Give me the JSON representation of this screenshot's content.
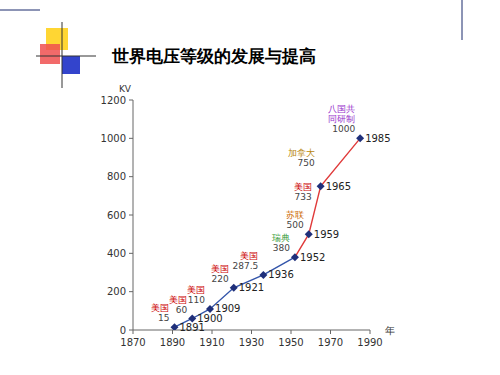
{
  "chart_data": {
    "type": "line",
    "title": "世界电压等级的发展与提高",
    "y_label": "KV",
    "x_label": "年",
    "x": [
      1891,
      1900,
      1909,
      1921,
      1936,
      1952,
      1959,
      1965,
      1985
    ],
    "xlim": [
      1870,
      1990
    ],
    "xticks": [
      1870,
      1890,
      1910,
      1930,
      1950,
      1970,
      1990
    ],
    "ylim": [
      0,
      1200
    ],
    "yticks": [
      0,
      200,
      400,
      600,
      800,
      1000,
      1200
    ],
    "grid": false,
    "series": [
      {
        "type": "line",
        "color": "#3355aa",
        "line_style": "solid",
        "values": [
          15,
          60,
          110,
          220,
          287.5,
          380,
          null,
          null,
          null
        ]
      },
      {
        "type": "line",
        "color": "#e03a3a",
        "line_style": "solid",
        "values": [
          null,
          null,
          null,
          null,
          null,
          380,
          500,
          750,
          1000
        ]
      },
      {
        "type": "scatter",
        "color": "#1f2f7a",
        "marker": "diamond",
        "values": [
          15,
          60,
          110,
          220,
          287.5,
          380,
          500,
          750,
          1000
        ]
      }
    ],
    "annotations": [
      {
        "x": 1891,
        "y": 15,
        "color": "#cc0000",
        "lines": [
          "美国",
          "15"
        ]
      },
      {
        "x": 1900,
        "y": 60,
        "color": "#cc0000",
        "lines": [
          "美国",
          "60"
        ]
      },
      {
        "x": 1909,
        "y": 110,
        "color": "#cc0000",
        "lines": [
          "美国",
          "110"
        ]
      },
      {
        "x": 1921,
        "y": 220,
        "color": "#cc0000",
        "lines": [
          "美国",
          "220"
        ]
      },
      {
        "x": 1936,
        "y": 287.5,
        "color": "#cc0000",
        "lines": [
          "美国",
          "287.5"
        ]
      },
      {
        "x": 1952,
        "y": 380,
        "color": "#339933",
        "lines": [
          "瑞典",
          "380"
        ]
      },
      {
        "x": 1959,
        "y": 500,
        "color": "#cc6600",
        "lines": [
          "苏联",
          "500"
        ]
      },
      {
        "x": 1965,
        "y": 750,
        "color": "#b8860b",
        "lines": [
          "加拿大",
          "750"
        ]
      },
      {
        "x": 1965,
        "y": 750,
        "color": "#cc0000",
        "lines": [
          "美国",
          "733"
        ]
      },
      {
        "x": 1985,
        "y": 1000,
        "color": "#9933cc",
        "lines": [
          "八国共",
          "同研制",
          "1000"
        ]
      }
    ]
  }
}
